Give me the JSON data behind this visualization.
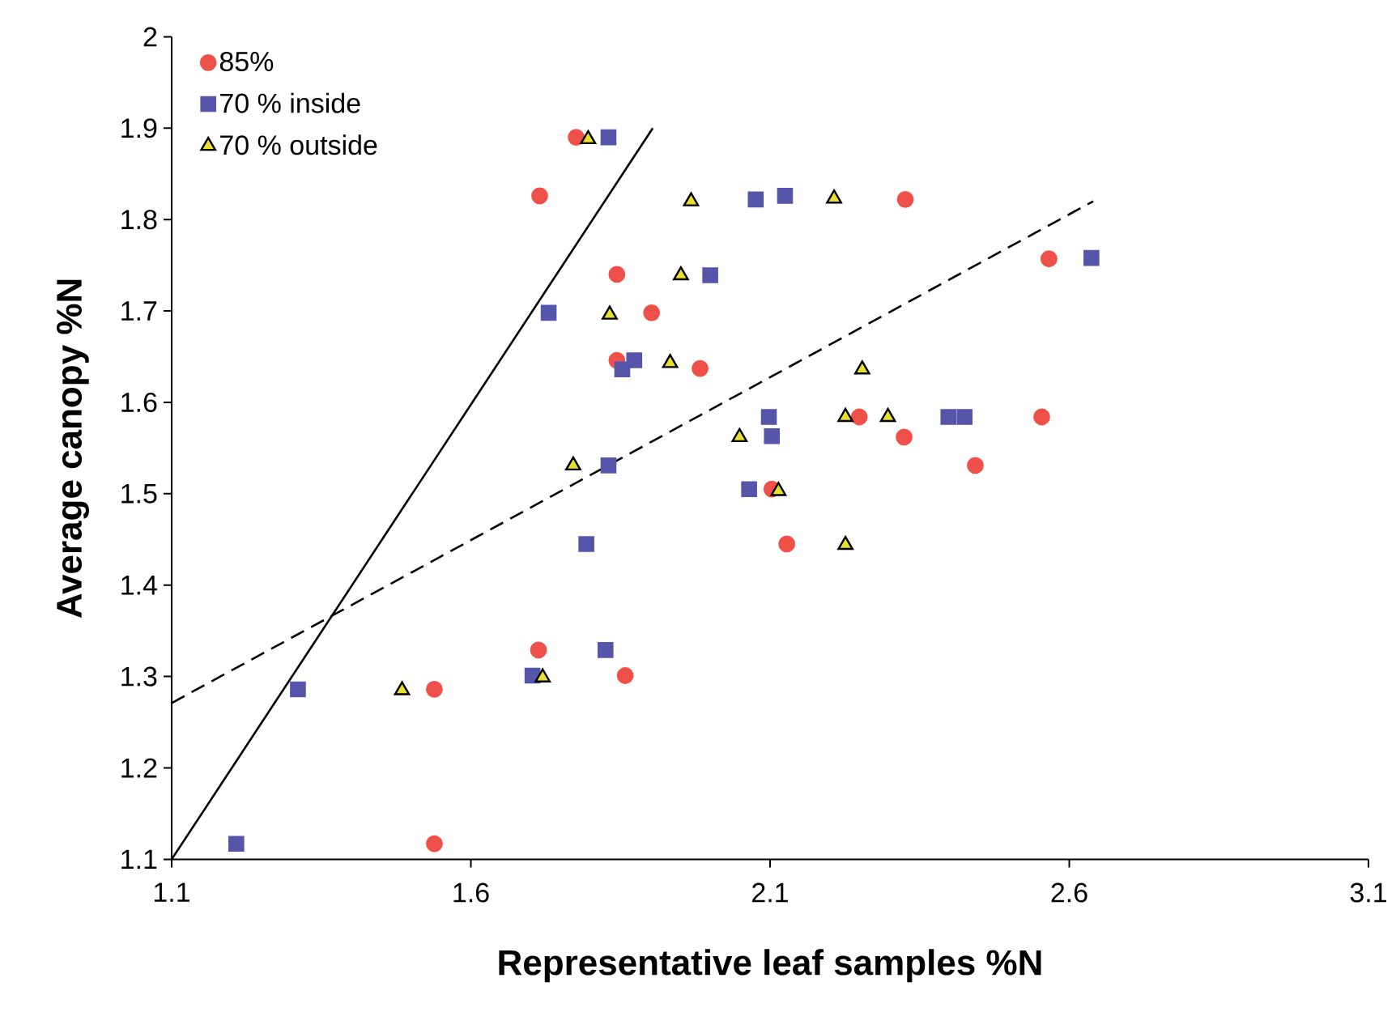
{
  "chart_data": {
    "type": "scatter",
    "xlabel": "Representative leaf samples %N",
    "ylabel": "Average canopy %N",
    "xlim": [
      1.1,
      3.1
    ],
    "ylim": [
      1.1,
      2.0
    ],
    "xticks": [
      1.1,
      1.6,
      2.1,
      2.6,
      3.1
    ],
    "yticks": [
      1.1,
      1.2,
      1.3,
      1.4,
      1.5,
      1.6,
      1.7,
      1.8,
      1.9,
      2
    ],
    "grid": false,
    "legend": "top left",
    "series": [
      {
        "name": "85%",
        "marker": "circle",
        "color": "#f0504a",
        "x": [
          1.776,
          1.715,
          1.844,
          1.902,
          1.844,
          1.983,
          2.326,
          2.566,
          2.249,
          2.554,
          2.324,
          2.443,
          2.103,
          2.128,
          1.713,
          1.858,
          1.539,
          1.539
        ],
        "values": [
          1.89,
          1.826,
          1.74,
          1.698,
          1.646,
          1.637,
          1.822,
          1.757,
          1.584,
          1.584,
          1.562,
          1.531,
          1.505,
          1.445,
          1.329,
          1.301,
          1.286,
          1.117
        ]
      },
      {
        "name": "70 % inside",
        "marker": "square",
        "color": "#5555aa",
        "x": [
          1.83,
          2.076,
          2.125,
          2.0,
          1.73,
          1.873,
          1.853,
          2.098,
          2.103,
          1.83,
          2.637,
          2.398,
          2.425,
          2.065,
          1.793,
          1.825,
          1.703,
          1.311,
          1.208
        ],
        "values": [
          1.89,
          1.822,
          1.826,
          1.739,
          1.698,
          1.646,
          1.636,
          1.584,
          1.563,
          1.531,
          1.758,
          1.584,
          1.584,
          1.505,
          1.445,
          1.329,
          1.301,
          1.286,
          1.117
        ]
      },
      {
        "name": "70 % outside",
        "marker": "triangle",
        "color": "#e8e030",
        "x": [
          1.796,
          1.968,
          1.951,
          1.832,
          1.933,
          2.049,
          1.771,
          2.207,
          2.254,
          2.226,
          2.297,
          2.114,
          2.226,
          1.72,
          1.485
        ],
        "values": [
          1.888,
          1.82,
          1.739,
          1.696,
          1.643,
          1.562,
          1.531,
          1.823,
          1.636,
          1.584,
          1.584,
          1.503,
          1.444,
          1.299,
          1.285
        ]
      },
      {
        "type": "line",
        "marker": "none",
        "line_style": "solid",
        "color": "#000000",
        "x": [
          1.1,
          1.904
        ],
        "values": [
          1.1,
          1.9
        ]
      },
      {
        "type": "line",
        "marker": "none",
        "line_style": "dashed",
        "color": "#000000",
        "x": [
          1.1,
          2.64
        ],
        "values": [
          1.271,
          1.82
        ]
      }
    ]
  }
}
